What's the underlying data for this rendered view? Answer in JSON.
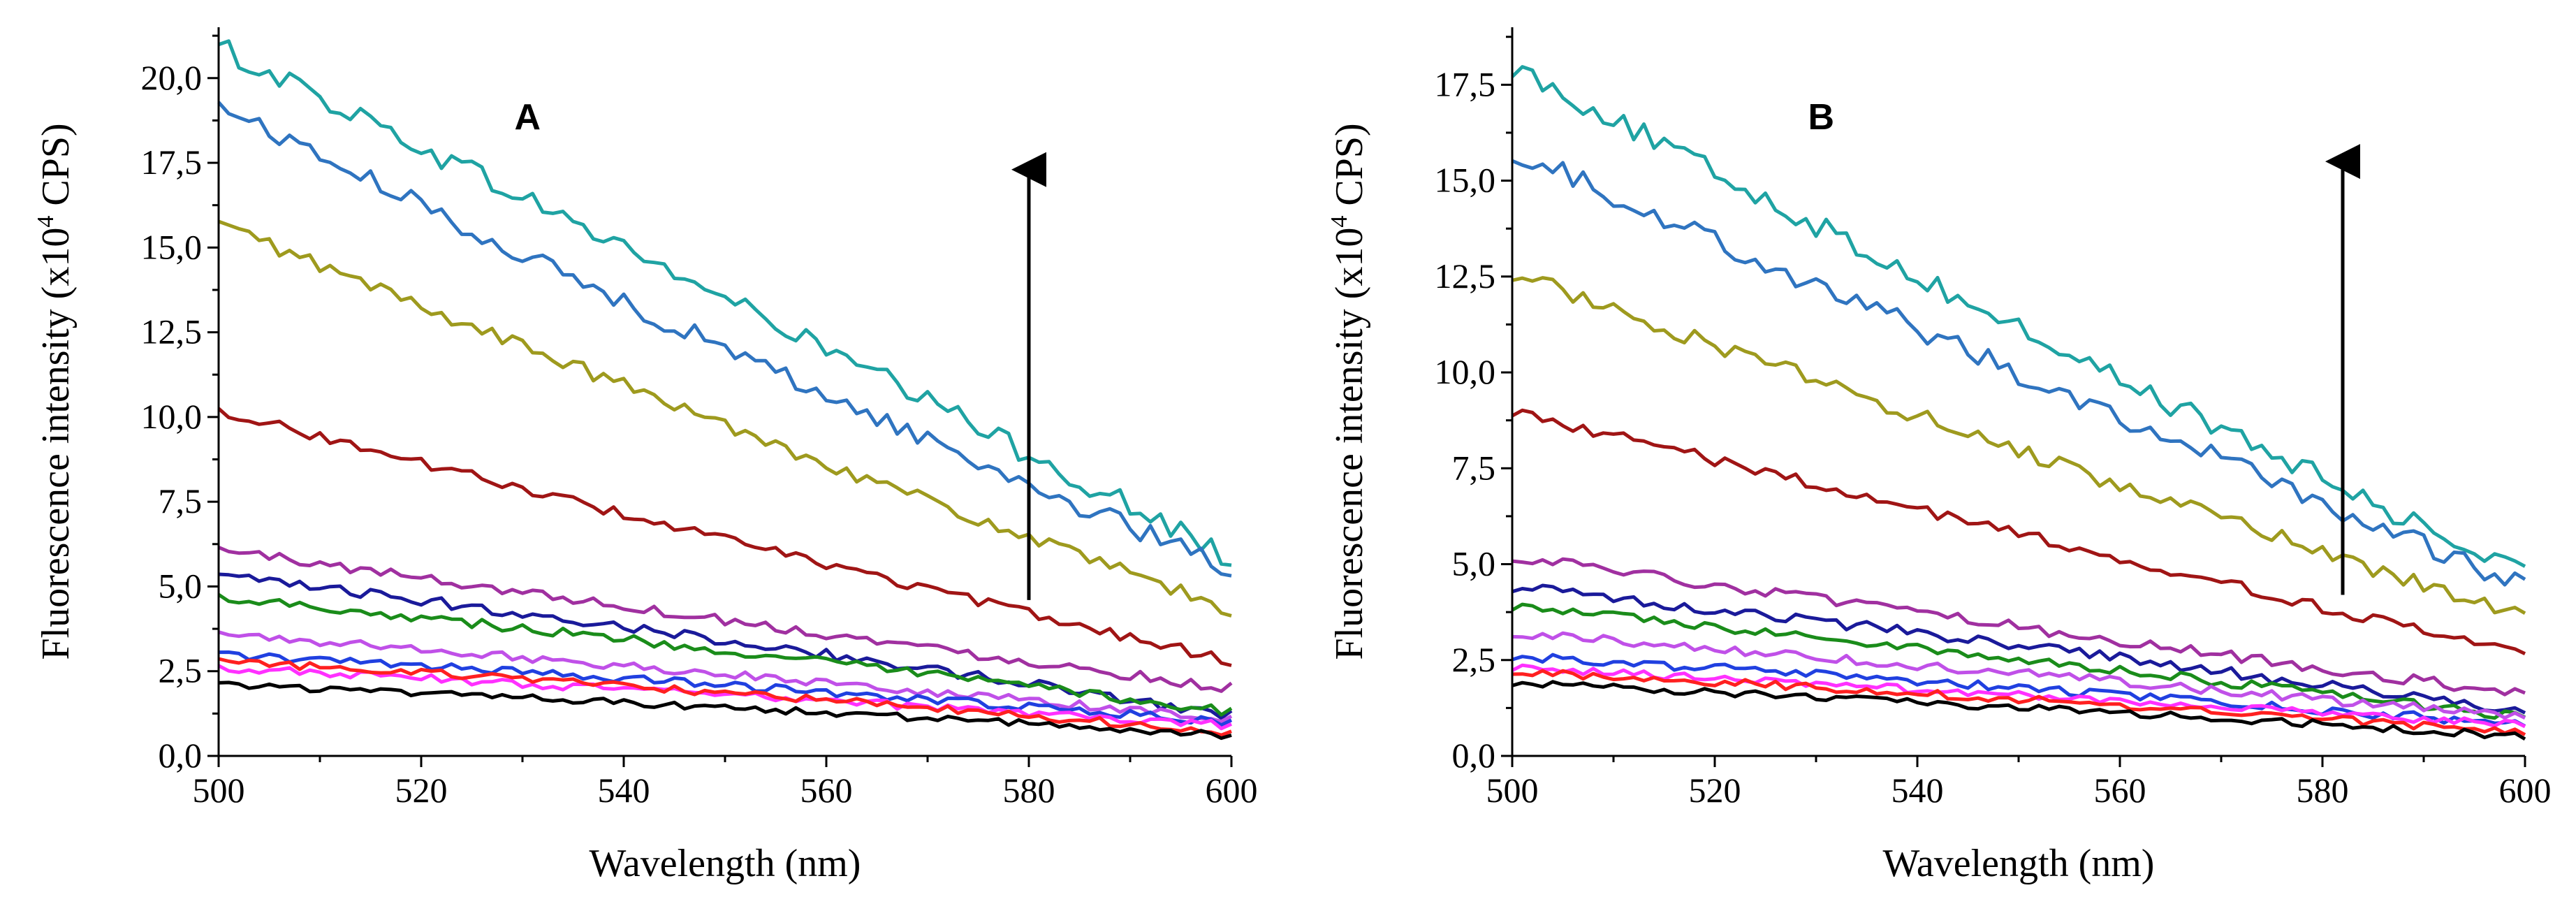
{
  "figure": {
    "panels": [
      "A",
      "B"
    ]
  },
  "colors": {
    "teal": "#1fa3a3",
    "blue": "#2f74c0",
    "olive": "#9e9a1e",
    "darkred": "#a01515",
    "purple": "#a030a0",
    "navy": "#1a1a9a",
    "green": "#1a8c1a",
    "violet": "#c050e8",
    "royal": "#2040e0",
    "magenta": "#ff30ff",
    "red": "#ff2020",
    "black": "#000000"
  },
  "chart_data": [
    {
      "type": "line",
      "panel_label": "A",
      "title": "",
      "xlabel": "Wavelength (nm)",
      "ylabel_prefix": "Fluorescence intensity (x10",
      "ylabel_sup": "4",
      "ylabel_suffix": " CPS)",
      "xlim": [
        500,
        600
      ],
      "ylim": [
        0,
        21.5
      ],
      "xticks": [
        500,
        520,
        540,
        560,
        580,
        600
      ],
      "xtick_labels": [
        "500",
        "520",
        "540",
        "560",
        "580",
        "600"
      ],
      "yticks": [
        0,
        2.5,
        5,
        7.5,
        10,
        12.5,
        15,
        17.5,
        20
      ],
      "ytick_labels": [
        "0,0",
        "2,5",
        "5,0",
        "7,5",
        "10,0",
        "12,5",
        "15,0",
        "17,5",
        "20,0"
      ],
      "arrow": {
        "x": 580,
        "y_from": 4.6,
        "y_to": 17.3,
        "direction": "up"
      },
      "series": [
        {
          "name": "teal",
          "color": "teal",
          "start": 20.9,
          "end": 5.8,
          "curve": 0.02,
          "noise": 0.35
        },
        {
          "name": "blue",
          "color": "blue",
          "start": 19.2,
          "end": 5.5,
          "curve": -0.05,
          "noise": 0.3
        },
        {
          "name": "olive",
          "color": "olive",
          "start": 15.7,
          "end": 4.3,
          "curve": -0.04,
          "noise": 0.22
        },
        {
          "name": "darkred",
          "color": "darkred",
          "start": 10.2,
          "end": 2.8,
          "curve": -0.03,
          "noise": 0.15
        },
        {
          "name": "purple",
          "color": "purple",
          "start": 6.1,
          "end": 2.0,
          "curve": -0.02,
          "noise": 0.15
        },
        {
          "name": "navy",
          "color": "navy",
          "start": 5.3,
          "end": 1.2,
          "curve": 0.08,
          "noise": 0.15
        },
        {
          "name": "green",
          "color": "green",
          "start": 4.7,
          "end": 1.3,
          "curve": 0.06,
          "noise": 0.14
        },
        {
          "name": "violet",
          "color": "violet",
          "start": 3.6,
          "end": 1.1,
          "curve": 0.05,
          "noise": 0.12
        },
        {
          "name": "royal",
          "color": "royal",
          "start": 3.0,
          "end": 1.0,
          "curve": 0.08,
          "noise": 0.12
        },
        {
          "name": "magenta",
          "color": "magenta",
          "start": 2.6,
          "end": 0.9,
          "curve": 0.05,
          "noise": 0.12
        },
        {
          "name": "red",
          "color": "red",
          "start": 2.8,
          "end": 0.7,
          "curve": 0.1,
          "noise": 0.12
        },
        {
          "name": "black",
          "color": "black",
          "start": 2.1,
          "end": 0.6,
          "curve": 0.1,
          "noise": 0.1
        }
      ]
    },
    {
      "type": "line",
      "panel_label": "B",
      "title": "",
      "xlabel": "Wavelength (nm)",
      "ylabel_prefix": "Fluorescence intensity (x10",
      "ylabel_sup": "4",
      "ylabel_suffix": " CPS)",
      "xlim": [
        500,
        600
      ],
      "ylim": [
        0,
        19
      ],
      "xticks": [
        500,
        520,
        540,
        560,
        580,
        600
      ],
      "xtick_labels": [
        "500",
        "520",
        "540",
        "560",
        "580",
        "600"
      ],
      "yticks": [
        0,
        2.5,
        5,
        7.5,
        10,
        12.5,
        15,
        17.5
      ],
      "ytick_labels": [
        "0,0",
        "2,5",
        "5,0",
        "7,5",
        "10,0",
        "12,5",
        "15,0",
        "17,5"
      ],
      "arrow": {
        "x": 582,
        "y_from": 4.2,
        "y_to": 15.5,
        "direction": "up"
      },
      "series": [
        {
          "name": "teal",
          "color": "teal",
          "start": 18.0,
          "end": 4.7,
          "curve": -0.03,
          "noise": 0.3
        },
        {
          "name": "blue",
          "color": "blue",
          "start": 15.8,
          "end": 4.4,
          "curve": -0.02,
          "noise": 0.3
        },
        {
          "name": "olive",
          "color": "olive",
          "start": 12.6,
          "end": 3.6,
          "curve": -0.03,
          "noise": 0.22
        },
        {
          "name": "darkred",
          "color": "darkred",
          "start": 9.0,
          "end": 2.6,
          "curve": 0.0,
          "noise": 0.15
        },
        {
          "name": "purple",
          "color": "purple",
          "start": 5.2,
          "end": 1.6,
          "curve": -0.02,
          "noise": 0.14
        },
        {
          "name": "navy",
          "color": "navy",
          "start": 4.4,
          "end": 1.1,
          "curve": 0.08,
          "noise": 0.14
        },
        {
          "name": "green",
          "color": "green",
          "start": 3.9,
          "end": 1.0,
          "curve": 0.05,
          "noise": 0.12
        },
        {
          "name": "violet",
          "color": "violet",
          "start": 3.2,
          "end": 1.0,
          "curve": 0.05,
          "noise": 0.12
        },
        {
          "name": "royal",
          "color": "royal",
          "start": 2.6,
          "end": 0.8,
          "curve": 0.08,
          "noise": 0.12
        },
        {
          "name": "magenta",
          "color": "magenta",
          "start": 2.3,
          "end": 0.8,
          "curve": 0.05,
          "noise": 0.1
        },
        {
          "name": "red",
          "color": "red",
          "start": 2.2,
          "end": 0.6,
          "curve": 0.1,
          "noise": 0.1
        },
        {
          "name": "black",
          "color": "black",
          "start": 1.9,
          "end": 0.5,
          "curve": 0.1,
          "noise": 0.1
        }
      ]
    }
  ]
}
